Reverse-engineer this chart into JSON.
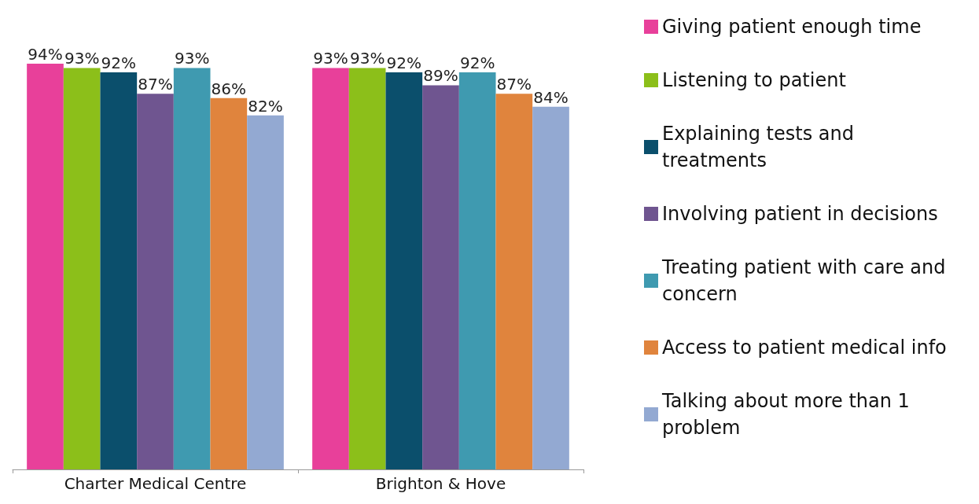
{
  "chart_data": {
    "type": "bar",
    "categories": [
      "Charter Medical Centre",
      "Brighton & Hove"
    ],
    "legend": "right",
    "series": [
      {
        "name": "Giving patient enough time",
        "color": "#e8409a",
        "values": [
          94,
          93
        ],
        "value_labels": [
          "94%",
          "93%"
        ]
      },
      {
        "name": "Listening to patient",
        "color": "#8cbf1a",
        "values": [
          93,
          93
        ],
        "value_labels": [
          "93%",
          "93%"
        ]
      },
      {
        "name": "Explaining tests and treatments",
        "color": "#0b4f6c",
        "values": [
          92,
          92
        ],
        "value_labels": [
          "92%",
          "92%"
        ]
      },
      {
        "name": "Involving patient in decisions",
        "color": "#6f5590",
        "values": [
          87,
          89
        ],
        "value_labels": [
          "87%",
          "89%"
        ]
      },
      {
        "name": "Treating patient with care and concern",
        "color": "#3f9ab0",
        "values": [
          93,
          92
        ],
        "value_labels": [
          "93%",
          "92%"
        ]
      },
      {
        "name": "Access to patient medical info",
        "color": "#e0843d",
        "values": [
          86,
          87
        ],
        "value_labels": [
          "86%",
          "87%"
        ]
      },
      {
        "name": "Talking about more than 1 problem",
        "color": "#93a9d2",
        "values": [
          82,
          84
        ],
        "value_labels": [
          "82%",
          "84%"
        ]
      }
    ]
  }
}
